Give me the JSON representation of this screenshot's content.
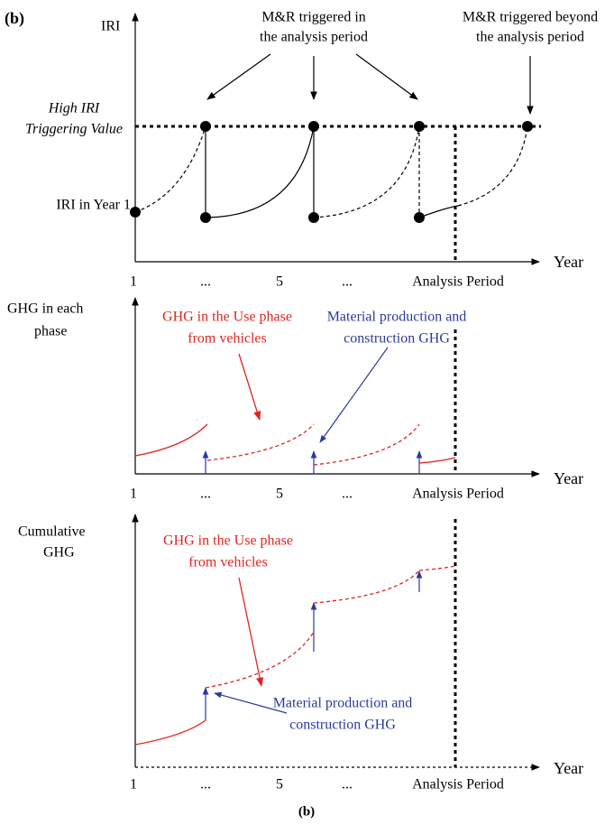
{
  "figure_label": "(b)",
  "panels": [
    {
      "y_label": [
        "IRI"
      ],
      "annotations": [
        {
          "lines": [
            "M&R triggered in",
            "the analysis period"
          ]
        },
        {
          "lines": [
            "M&R triggered beyond",
            "the analysis period"
          ]
        },
        {
          "lines": [
            "High IRI",
            "Triggering Value"
          ]
        },
        {
          "lines": [
            "IRI in Year 1"
          ]
        }
      ],
      "x_labels": [
        "1",
        "...",
        "5",
        "...",
        "Analysis Period"
      ],
      "x_axis_label": "Year"
    },
    {
      "y_label": [
        "GHG  in each",
        "phase"
      ],
      "annotations": [
        {
          "lines": [
            "GHG in the Use phase",
            "from vehicles"
          ]
        },
        {
          "lines": [
            "Material production and",
            "construction GHG"
          ]
        }
      ],
      "x_labels": [
        "1",
        "...",
        "5",
        "...",
        "Analysis Period"
      ],
      "x_axis_label": "Year"
    },
    {
      "y_label": [
        "Cumulative",
        "GHG"
      ],
      "annotations": [
        {
          "lines": [
            "GHG in the Use phase",
            "from vehicles"
          ]
        },
        {
          "lines": [
            "Material production and",
            "construction GHG"
          ]
        }
      ],
      "x_labels": [
        "1",
        "...",
        "5",
        "...",
        "Analysis Period"
      ],
      "x_axis_label": "Year"
    }
  ],
  "caption": "(b)"
}
